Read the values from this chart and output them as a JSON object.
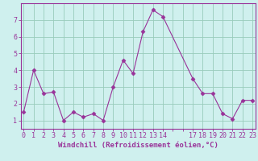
{
  "x": [
    0,
    1,
    2,
    3,
    4,
    5,
    6,
    7,
    8,
    9,
    10,
    11,
    12,
    13,
    14,
    17,
    18,
    19,
    20,
    21,
    22,
    23
  ],
  "y": [
    1.5,
    4.0,
    2.6,
    2.7,
    1.0,
    1.5,
    1.2,
    1.4,
    1.0,
    3.0,
    4.6,
    3.8,
    6.3,
    7.6,
    7.2,
    3.5,
    2.6,
    2.6,
    1.4,
    1.1,
    2.2,
    2.2
  ],
  "line_color": "#993399",
  "marker": "D",
  "markersize": 2.5,
  "background_color": "#cff0ee",
  "grid_color": "#99ccbb",
  "axis_color": "#993399",
  "xlabel": "Windchill (Refroidissement éolien,°C)",
  "xlim": [
    0,
    23
  ],
  "ylim": [
    0.5,
    7.8
  ],
  "xticks": [
    0,
    1,
    2,
    3,
    4,
    5,
    6,
    7,
    8,
    9,
    10,
    11,
    12,
    13,
    14,
    17,
    18,
    19,
    20,
    21,
    22,
    23
  ],
  "yticks": [
    1,
    2,
    3,
    4,
    5,
    6,
    7
  ],
  "label_fontsize": 6.5,
  "tick_fontsize": 6.0
}
